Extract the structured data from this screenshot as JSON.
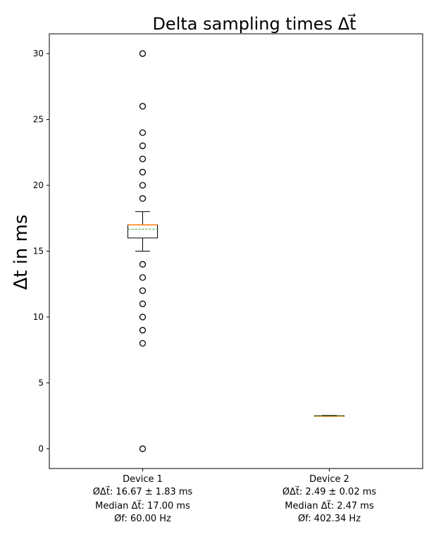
{
  "chart_data": {
    "type": "box",
    "title": "Delta sampling times Δt⃗",
    "ylabel": "Δt in ms",
    "xlabel": "",
    "ylim": [
      -1.5,
      31.5
    ],
    "yticks": [
      0,
      5,
      10,
      15,
      20,
      25,
      30
    ],
    "grid": false,
    "legend": "none",
    "categories": [
      {
        "name": "Device 1",
        "stats_lines": [
          "ØΔt⃗: 16.67 ± 1.83 ms",
          "Median Δt⃗: 17.00 ms",
          "Øf: 60.00 Hz"
        ],
        "whisker_low": 15,
        "q1": 16,
        "median": 17,
        "mean": 16.67,
        "q3": 17,
        "whisker_high": 18,
        "outliers": [
          0,
          8,
          9,
          10,
          11,
          12,
          13,
          14,
          19,
          20,
          21,
          22,
          23,
          24,
          26,
          30
        ]
      },
      {
        "name": "Device 2",
        "stats_lines": [
          "ØΔt⃗: 2.49 ± 0.02 ms",
          "Median Δt⃗: 2.47 ms",
          "Øf: 402.34 Hz"
        ],
        "whisker_low": 2.45,
        "q1": 2.47,
        "median": 2.47,
        "mean": 2.49,
        "q3": 2.51,
        "whisker_high": 2.53,
        "outliers": []
      }
    ],
    "colors": {
      "box": "#000000",
      "median": "#ff7f0e",
      "mean": "#2ca02c",
      "outlier": "#000000"
    }
  }
}
